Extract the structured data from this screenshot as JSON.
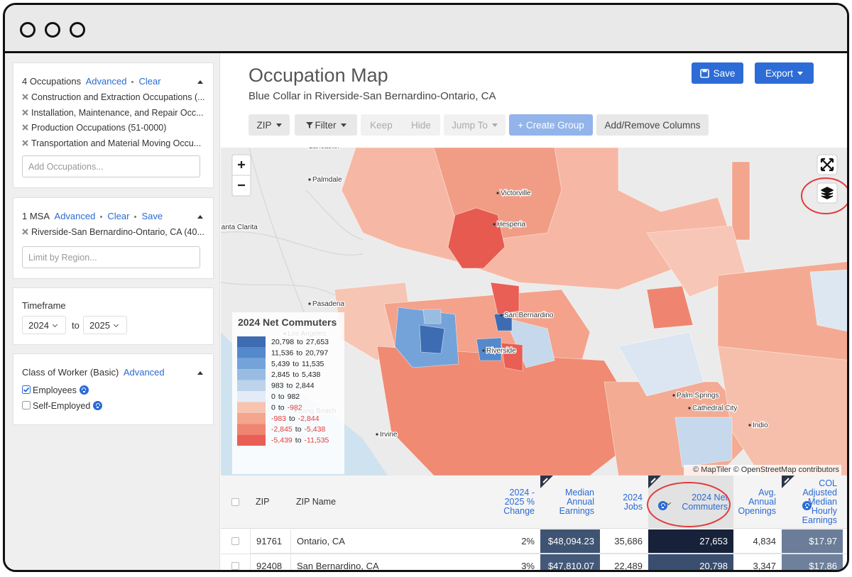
{
  "sidebar": {
    "occupations": {
      "title": "4 Occupations",
      "links": [
        "Advanced",
        "Clear"
      ],
      "items": [
        "Construction and Extraction Occupations (...",
        "Installation, Maintenance, and Repair Occ...",
        "Production Occupations (51-0000)",
        "Transportation and Material Moving Occu..."
      ],
      "placeholder": "Add Occupations..."
    },
    "msa": {
      "title": "1 MSA",
      "links": [
        "Advanced",
        "Clear",
        "Save"
      ],
      "items": [
        "Riverside-San Bernardino-Ontario, CA (40..."
      ],
      "placeholder": "Limit by Region..."
    },
    "timeframe": {
      "title": "Timeframe",
      "from": "2024",
      "joiner": "to",
      "to": "2025"
    },
    "worker_class": {
      "title": "Class of Worker (Basic)",
      "link": "Advanced",
      "options": [
        {
          "label": "Employees",
          "checked": true
        },
        {
          "label": "Self-Employed",
          "checked": false
        }
      ]
    }
  },
  "header": {
    "title": "Occupation Map",
    "subtitle": "Blue Collar in Riverside-San Bernardino-Ontario, CA",
    "save": "Save",
    "export": "Export"
  },
  "toolbar": {
    "zip": "ZIP",
    "filter": "Filter",
    "keep": "Keep",
    "hide": "Hide",
    "jump_to": "Jump To",
    "create_group": "+ Create Group",
    "columns": "Add/Remove Columns"
  },
  "map": {
    "places": [
      "Lancaster",
      "Palmdale",
      "Victorville",
      "Hesperia",
      "Santa Clarita",
      "Pasadena",
      "San Bernardino",
      "Los Angeles",
      "Riverside",
      "Long Beach",
      "Irvine",
      "Palm Springs",
      "Cathedral City",
      "Indio"
    ],
    "legend": {
      "title": "2024 Net Commuters",
      "joiner": "to",
      "entries": [
        {
          "from": "20,798",
          "to": "27,653",
          "color": "#3d6cb3"
        },
        {
          "from": "11,536",
          "to": "20,797",
          "color": "#5489cc"
        },
        {
          "from": "5,439",
          "to": "11,535",
          "color": "#74a3d9"
        },
        {
          "from": "2,845",
          "to": "5,438",
          "color": "#98bce2"
        },
        {
          "from": "983",
          "to": "2,844",
          "color": "#bcd3ea"
        },
        {
          "from": "0",
          "to": "982",
          "color": "#e3ecf6"
        },
        {
          "from": "0",
          "to": "-982",
          "color": "#f7c4b1"
        },
        {
          "from": "-983",
          "to": "-2,844",
          "color": "#f4a58d"
        },
        {
          "from": "-2,845",
          "to": "-5,438",
          "color": "#ef8570"
        },
        {
          "from": "-5,439",
          "to": "-11,535",
          "color": "#e95e55"
        }
      ]
    },
    "attribution": "© MapTiler © OpenStreetMap contributors"
  },
  "table": {
    "columns": [
      "ZIP",
      "ZIP Name",
      "2024 - 2025 % Change",
      "Median Annual Earnings",
      "2024 Jobs",
      "2024 Net Commuters",
      "Avg. Annual Openings",
      "COL Adjusted Median Hourly Earnings"
    ],
    "rows": [
      [
        "91761",
        "Ontario, CA",
        "2%",
        "$48,094.23",
        "35,686",
        "27,653",
        "4,834",
        "$17.97"
      ],
      [
        "92408",
        "San Bernardino, CA",
        "3%",
        "$47,810.07",
        "22,489",
        "20,798",
        "3,347",
        "$17.86"
      ]
    ]
  }
}
